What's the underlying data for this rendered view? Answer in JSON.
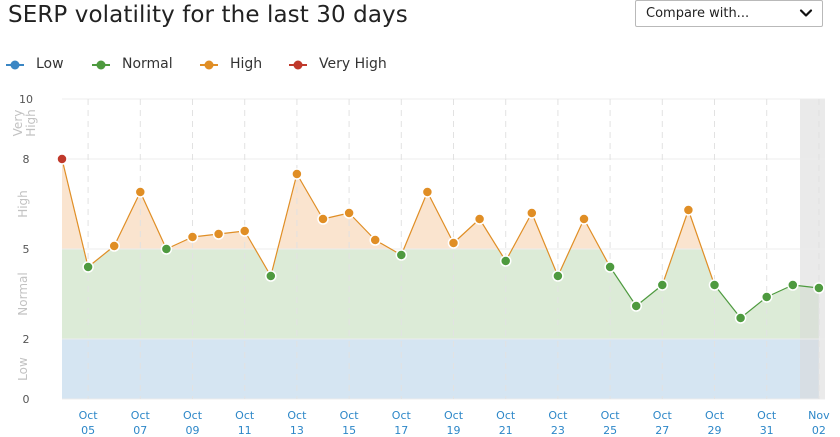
{
  "header": {
    "title": "SERP volatility for the last 30 days",
    "compare_label": "Compare with..."
  },
  "legend": [
    {
      "label": "Low",
      "color": "#3a86c4"
    },
    {
      "label": "Normal",
      "color": "#4e9a3f"
    },
    {
      "label": "High",
      "color": "#e08e25"
    },
    {
      "label": "Very High",
      "color": "#c0392b"
    }
  ],
  "chart_data": {
    "type": "line",
    "ylim": [
      0,
      10
    ],
    "yticks": [
      0,
      2,
      5,
      8,
      10
    ],
    "bands": [
      {
        "label": "Low",
        "from": 0,
        "to": 2,
        "color": "#d5e5f2"
      },
      {
        "label": "Normal",
        "from": 2,
        "to": 5,
        "color": "#dcebd7"
      },
      {
        "label": "High",
        "from": 5,
        "to": 8,
        "color": "#fae4cf"
      },
      {
        "label": "Very High",
        "from": 8,
        "to": 10,
        "color": "#fbe0dc"
      }
    ],
    "band_labels": [
      {
        "text": "Low",
        "y": 1
      },
      {
        "text": "Normal",
        "y": 3.5
      },
      {
        "text": "High",
        "y": 6.5
      },
      {
        "text": "Very High",
        "y": 9.2
      }
    ],
    "x_ticks": [
      {
        "top": "Oct",
        "bottom": "05"
      },
      {
        "top": "Oct",
        "bottom": "07"
      },
      {
        "top": "Oct",
        "bottom": "09"
      },
      {
        "top": "Oct",
        "bottom": "11"
      },
      {
        "top": "Oct",
        "bottom": "13"
      },
      {
        "top": "Oct",
        "bottom": "15"
      },
      {
        "top": "Oct",
        "bottom": "17"
      },
      {
        "top": "Oct",
        "bottom": "19"
      },
      {
        "top": "Oct",
        "bottom": "21"
      },
      {
        "top": "Oct",
        "bottom": "23"
      },
      {
        "top": "Oct",
        "bottom": "25"
      },
      {
        "top": "Oct",
        "bottom": "27"
      },
      {
        "top": "Oct",
        "bottom": "29"
      },
      {
        "top": "Oct",
        "bottom": "31"
      },
      {
        "top": "Nov",
        "bottom": "02"
      }
    ],
    "series": [
      {
        "x": [
          "Oct 04",
          "Oct 05",
          "Oct 06",
          "Oct 07",
          "Oct 08",
          "Oct 09",
          "Oct 10",
          "Oct 11",
          "Oct 12",
          "Oct 13",
          "Oct 14",
          "Oct 15",
          "Oct 16",
          "Oct 17",
          "Oct 18",
          "Oct 19",
          "Oct 20",
          "Oct 21",
          "Oct 22",
          "Oct 23",
          "Oct 24",
          "Oct 25",
          "Oct 26",
          "Oct 27",
          "Oct 28",
          "Oct 29",
          "Oct 30",
          "Oct 31",
          "Nov 01",
          "Nov 02"
        ],
        "values": [
          8.0,
          4.4,
          5.1,
          6.9,
          5.0,
          5.4,
          5.5,
          5.6,
          4.1,
          7.5,
          6.0,
          6.2,
          5.3,
          4.8,
          6.9,
          5.2,
          6.0,
          4.6,
          6.2,
          4.1,
          6.0,
          4.4,
          3.1,
          3.8,
          6.3,
          3.8,
          2.7,
          3.4,
          3.8,
          3.7
        ]
      }
    ]
  }
}
